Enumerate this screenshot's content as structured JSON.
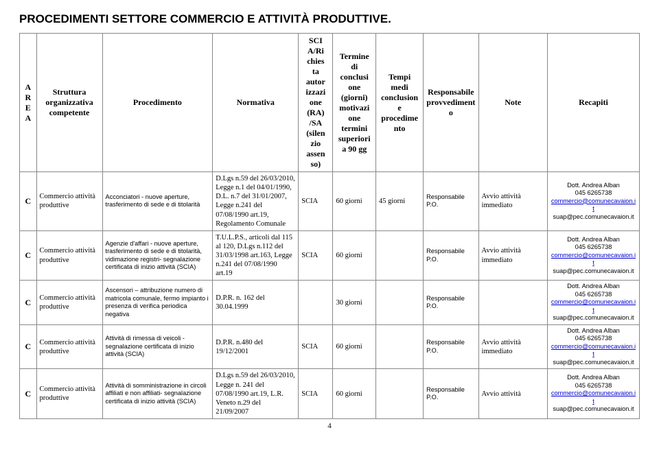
{
  "title": "PROCEDIMENTI SETTORE COMMERCIO E ATTIVITÀ PRODUTTIVE.",
  "page_number": "4",
  "headers": {
    "area": "A\nR\nE\nA",
    "struttura": "Struttura organizzativa competente",
    "procedimento": "Procedimento",
    "normativa": "Normativa",
    "sci": "SCI\nA/Ri\nchies\nta\nautor\nizzazi\none\n(RA)\n/SA\n(silen\nzio\nassen\nso)",
    "termine": "Termine di conclusi one (giorni) motivazi one termini superiori a 90 gg",
    "tempi": "Tempi medi conclusion e procedime nto",
    "responsabile": "Responsabile provvedimento",
    "note": "Note",
    "recapiti": "Recapiti"
  },
  "rows": [
    {
      "area": "C",
      "struttura": "Commercio attività produttive",
      "procedimento": "Acconciatori - nuove aperture, trasferimento di sede e di titolarità",
      "normativa": "D.Lgs n.59 del 26/03/2010, Legge n.1 del 04/01/1990, D.L. n.7 del 31/01/2007, Legge n.241 del 07/08/1990 art.19, Regolamento Comunale",
      "sci": "SCIA",
      "termine": "60 giorni",
      "tempi": "45 giorni",
      "responsabile": "Responsabile P.O.",
      "note": "Avvio attività immediato",
      "recapiti_name": "Dott. Andrea Alban",
      "recapiti_phone": "045 6265738",
      "recapiti_email1": "commercio@comunecavaion.it",
      "recapiti_email2": "suap@pec.comunecavaion.it"
    },
    {
      "area": "C",
      "struttura": "Commercio attività produttive",
      "procedimento": "Agenzie d'affari - nuove aperture, trasferimento di sede e di titolarità, vidimazione registri- segnalazione certificata di inizio attività (SCIA)",
      "normativa": "T.U.L.P.S., articoli dal 115 al 120, D.Lgs n.112 del 31/03/1998 art.163, Legge n.241 del 07/08/1990 art.19",
      "sci": "SCIA",
      "termine": "60 giorni",
      "tempi": "",
      "responsabile": "Responsabile P.O.",
      "note": "Avvio attività immediato",
      "recapiti_name": "Dott. Andrea Alban",
      "recapiti_phone": "045 6265738",
      "recapiti_email1": "commercio@comunecavaion.it",
      "recapiti_email2": "suap@pec.comunecavaion.it"
    },
    {
      "area": "C",
      "struttura": "Commercio attività produttive",
      "procedimento": "Ascensori – attribuzione numero di matricola comunale, fermo impianto i presenza di verifica periodica negativa",
      "normativa": "D.P.R. n. 162 del 30.04.1999",
      "sci": "",
      "termine": "30 giorni",
      "tempi": "",
      "responsabile": "Responsabile P.O.",
      "note": "",
      "recapiti_name": "Dott. Andrea Alban",
      "recapiti_phone": "045 6265738",
      "recapiti_email1": "commercio@comunecavaion.it",
      "recapiti_email2": "suap@pec.comunecavaion.it"
    },
    {
      "area": "C",
      "struttura": "Commercio attività produttive",
      "procedimento": "Attività di rimessa di veicoli - segnalazione certificata di inizio attività (SCIA)",
      "normativa": "D.P.R. n.480 del 19/12/2001",
      "sci": "SCIA",
      "termine": "60 giorni",
      "tempi": "",
      "responsabile": "Responsabile P.O.",
      "note": "Avvio attività immediato",
      "recapiti_name": "Dott. Andrea Alban",
      "recapiti_phone": "045 6265738",
      "recapiti_email1": "commercio@comunecavaion.it",
      "recapiti_email2": "suap@pec.comunecavaion.it"
    },
    {
      "area": "C",
      "struttura": "Commercio attività produttive",
      "procedimento": "Attività di somministrazione in circoli affiliati e non affiliati- segnalazione certificata di inizio attività (SCIA)",
      "normativa": "D.Lgs n.59 del 26/03/2010, Legge n. 241 del 07/08/1990 art.19, L.R. Veneto n.29 del 21/09/2007",
      "sci": "SCIA",
      "termine": "60 giorni",
      "tempi": "",
      "responsabile": "Responsabile P.O.",
      "note": "Avvio attività",
      "recapiti_name": "Dott. Andrea Alban",
      "recapiti_phone": "045 6265738",
      "recapiti_email1": "commercio@comunecavaion.it",
      "recapiti_email2": "suap@pec.comunecavaion.it"
    }
  ]
}
